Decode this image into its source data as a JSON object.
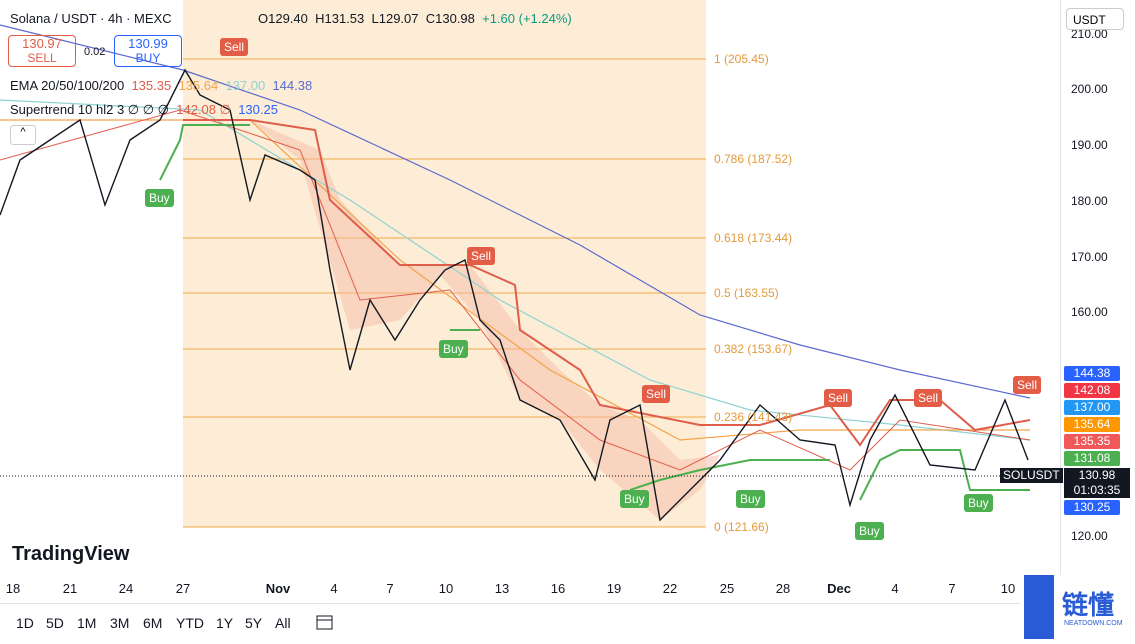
{
  "header": {
    "symbol": "Solana / USDT · 4h · MEXC",
    "open": "O129.40",
    "high": "H131.53",
    "low": "L129.07",
    "close": "C130.98",
    "change": "+1.60 (+1.24%)"
  },
  "trade": {
    "sell_price": "130.97",
    "sell_label": "SELL",
    "spread": "0.02",
    "buy_price": "130.99",
    "buy_label": "BUY"
  },
  "indicators": {
    "ema": {
      "name": "EMA 20/50/100/200",
      "values": [
        "135.35",
        "135.64",
        "137.00",
        "144.38"
      ]
    },
    "supertrend": {
      "name": "Supertrend 10 hl2 3 ∅ ∅ ∅",
      "values": [
        "142.08 ∅",
        "130.25"
      ]
    }
  },
  "fibonacci": [
    "1 (205.45)",
    "0.786 (187.52)",
    "0.618 (173.44)",
    "0.5 (163.55)",
    "0.382 (153.67)",
    "0.236 (141.43)",
    "0 (121.66)"
  ],
  "signals": {
    "sell": [
      "Sell",
      "Sell",
      "Sell",
      "Sell",
      "Sell",
      "Sell"
    ],
    "buy": [
      "Buy",
      "Buy",
      "Buy",
      "Buy",
      "Buy",
      "Buy"
    ]
  },
  "logo": "TradingView",
  "currency": "USDT",
  "price_axis": [
    "210.00",
    "200.00",
    "190.00",
    "180.00",
    "170.00",
    "160.00",
    "120.00"
  ],
  "price_tags": [
    "144.38",
    "142.08",
    "137.00",
    "135.64",
    "135.35",
    "131.08",
    "130.25"
  ],
  "last": {
    "symbol": "SOLUSDT",
    "price": "130.98",
    "countdown": "01:03:35"
  },
  "time_axis": [
    "18",
    "21",
    "24",
    "27",
    "Nov",
    "4",
    "7",
    "10",
    "13",
    "16",
    "19",
    "22",
    "25",
    "28",
    "Dec",
    "4",
    "7",
    "10"
  ],
  "ranges": [
    "1D",
    "5D",
    "1M",
    "3M",
    "6M",
    "YTD",
    "1Y",
    "5Y",
    "All"
  ],
  "watermark": {
    "title": "链懂",
    "subtitle": "NEATDOWN.COM"
  }
}
